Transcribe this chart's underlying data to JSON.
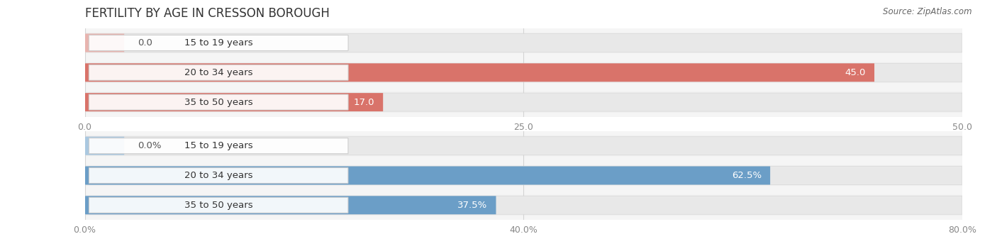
{
  "title": "FERTILITY BY AGE IN CRESSON BOROUGH",
  "source_text": "Source: ZipAtlas.com",
  "top_chart": {
    "categories": [
      "15 to 19 years",
      "20 to 34 years",
      "35 to 50 years"
    ],
    "values": [
      0.0,
      45.0,
      17.0
    ],
    "xlim": [
      0,
      50
    ],
    "xticks": [
      0.0,
      25.0,
      50.0
    ],
    "xtick_labels": [
      "0.0",
      "25.0",
      "50.0"
    ],
    "bar_color_full": "#d9736a",
    "bar_color_empty": "#e8b4af",
    "bar_bg_color": "#f0f0f0",
    "row_bg_color": "#f7f7f7"
  },
  "bottom_chart": {
    "categories": [
      "15 to 19 years",
      "20 to 34 years",
      "35 to 50 years"
    ],
    "values": [
      0.0,
      62.5,
      37.5
    ],
    "xlim": [
      0,
      80
    ],
    "xticks": [
      0.0,
      40.0,
      80.0
    ],
    "xtick_labels": [
      "0.0%",
      "40.0%",
      "80.0%"
    ],
    "bar_color_full": "#6b9ec7",
    "bar_color_empty": "#aac8e0",
    "bar_bg_color": "#f0f0f0",
    "row_bg_color": "#f7f7f7"
  },
  "bar_height": 0.62,
  "label_fontsize": 9.5,
  "tick_fontsize": 9,
  "cat_fontsize": 9.5,
  "title_fontsize": 12,
  "fig_bg_color": "#ffffff",
  "source_fontsize": 8.5,
  "value_label_color_inside": "#ffffff",
  "value_label_color_outside": "#555555",
  "cat_label_color": "#333333",
  "tick_color": "#888888",
  "grid_color": "#cccccc",
  "pill_bg_color": "#ffffff",
  "pill_border_color": "#dddddd"
}
